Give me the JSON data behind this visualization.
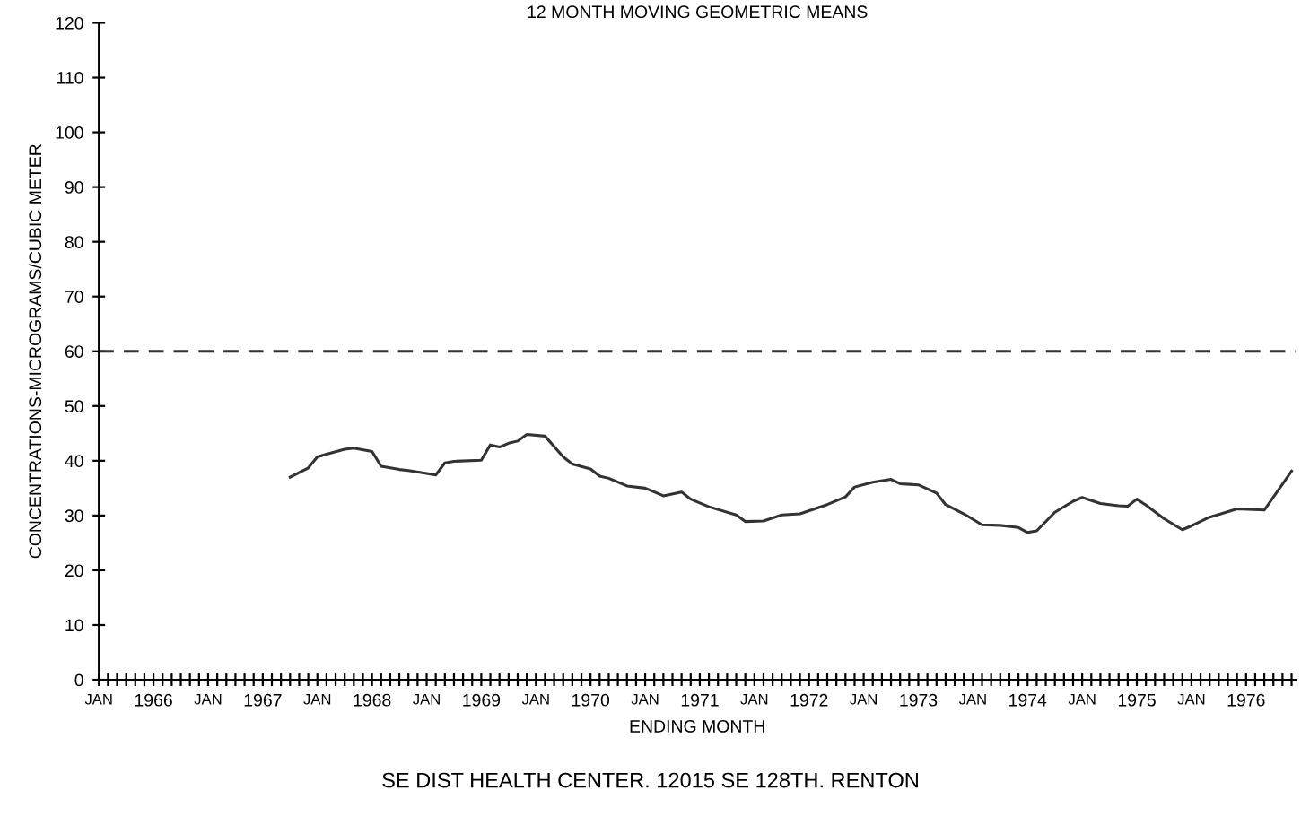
{
  "chart_data": {
    "type": "line",
    "title": "12 MONTH MOVING GEOMETRIC MEANS",
    "xlabel": "ENDING MONTH",
    "ylabel": "CONCENTRATIONS-MICROGRAMS/CUBIC METER",
    "annotations": [
      "SE DIST HEALTH CENTER. 12015 SE 128TH. RENTON"
    ],
    "x": [
      "1967-10",
      "1967-12",
      "1968-01",
      "1968-02",
      "1968-04",
      "1968-05",
      "1968-07",
      "1968-08",
      "1968-10",
      "1968-11",
      "1969-01",
      "1969-02",
      "1969-03",
      "1969-04",
      "1969-07",
      "1969-08",
      "1969-09",
      "1969-10",
      "1969-11",
      "1969-12",
      "1970-02",
      "1970-04",
      "1970-05",
      "1970-07",
      "1970-08",
      "1970-09",
      "1970-11",
      "1971-01",
      "1971-03",
      "1971-05",
      "1971-06",
      "1971-08",
      "1971-11",
      "1971-12",
      "1972-02",
      "1972-04",
      "1972-06",
      "1972-09",
      "1972-11",
      "1972-12",
      "1973-02",
      "1973-04",
      "1973-05",
      "1973-07",
      "1973-09",
      "1973-10",
      "1973-12",
      "1974-02",
      "1974-04",
      "1974-06",
      "1974-07",
      "1974-08",
      "1974-10",
      "1974-12",
      "1975-01",
      "1975-03",
      "1975-05",
      "1975-06",
      "1975-07",
      "1975-08",
      "1975-10",
      "1975-12",
      "1976-01",
      "1976-03",
      "1976-04",
      "1976-06",
      "1976-09",
      "1976-12"
    ],
    "series": [
      {
        "color": "#333333",
        "values": [
          37.0,
          38.7,
          40.7,
          41.2,
          42.1,
          42.3,
          41.7,
          39.0,
          38.4,
          38.2,
          37.7,
          37.4,
          39.6,
          39.9,
          40.1,
          42.9,
          42.5,
          43.2,
          43.6,
          44.8,
          44.5,
          40.7,
          39.4,
          38.5,
          37.2,
          36.8,
          35.4,
          35.0,
          33.6,
          34.3,
          33.0,
          31.6,
          30.1,
          28.9,
          29.0,
          30.1,
          30.3,
          32.0,
          33.4,
          35.2,
          36.1,
          36.6,
          35.8,
          35.6,
          34.1,
          32.0,
          30.3,
          28.3,
          28.2,
          27.8,
          26.9,
          27.2,
          30.6,
          32.6,
          33.3,
          32.2,
          31.8,
          31.7,
          33.0,
          31.9,
          29.4,
          27.4,
          28.1,
          29.7,
          30.2,
          31.2,
          31.0,
          38.1
        ]
      }
    ],
    "ylim": [
      0,
      120
    ],
    "yticks": [
      0,
      10,
      20,
      30,
      40,
      50,
      60,
      70,
      80,
      90,
      100,
      110,
      120
    ],
    "xlim": [
      "1966-01",
      "1976-12-15"
    ],
    "xticks": [
      {
        "value": "1966-01",
        "label": "JAN"
      },
      {
        "value": "1966-02",
        "label": null
      },
      {
        "value": "1966-03",
        "label": null
      },
      {
        "value": "1966-04",
        "label": null
      },
      {
        "value": "1966-05",
        "label": null
      },
      {
        "value": "1966-06",
        "label": null
      },
      {
        "value": "1966-07",
        "label": "1966"
      },
      {
        "value": "1966-08",
        "label": null
      },
      {
        "value": "1966-09",
        "label": null
      },
      {
        "value": "1966-10",
        "label": null
      },
      {
        "value": "1966-11",
        "label": null
      },
      {
        "value": "1966-12",
        "label": null
      },
      {
        "value": "1967-01",
        "label": "JAN"
      },
      {
        "value": "1967-02",
        "label": null
      },
      {
        "value": "1967-03",
        "label": null
      },
      {
        "value": "1967-04",
        "label": null
      },
      {
        "value": "1967-05",
        "label": null
      },
      {
        "value": "1967-06",
        "label": null
      },
      {
        "value": "1967-07",
        "label": "1967"
      },
      {
        "value": "1967-08",
        "label": null
      },
      {
        "value": "1967-09",
        "label": null
      },
      {
        "value": "1967-10",
        "label": null
      },
      {
        "value": "1967-11",
        "label": null
      },
      {
        "value": "1967-12",
        "label": null
      },
      {
        "value": "1968-01",
        "label": "JAN"
      },
      {
        "value": "1968-02",
        "label": null
      },
      {
        "value": "1968-03",
        "label": null
      },
      {
        "value": "1968-04",
        "label": null
      },
      {
        "value": "1968-05",
        "label": null
      },
      {
        "value": "1968-06",
        "label": null
      },
      {
        "value": "1968-07",
        "label": "1968"
      },
      {
        "value": "1968-08",
        "label": null
      },
      {
        "value": "1968-09",
        "label": null
      },
      {
        "value": "1968-10",
        "label": null
      },
      {
        "value": "1968-11",
        "label": null
      },
      {
        "value": "1968-12",
        "label": null
      },
      {
        "value": "1969-01",
        "label": "JAN"
      },
      {
        "value": "1969-02",
        "label": null
      },
      {
        "value": "1969-03",
        "label": null
      },
      {
        "value": "1969-04",
        "label": null
      },
      {
        "value": "1969-05",
        "label": null
      },
      {
        "value": "1969-06",
        "label": null
      },
      {
        "value": "1969-07",
        "label": "1969"
      },
      {
        "value": "1969-08",
        "label": null
      },
      {
        "value": "1969-09",
        "label": null
      },
      {
        "value": "1969-10",
        "label": null
      },
      {
        "value": "1969-11",
        "label": null
      },
      {
        "value": "1969-12",
        "label": null
      },
      {
        "value": "1970-01",
        "label": "JAN"
      },
      {
        "value": "1970-02",
        "label": null
      },
      {
        "value": "1970-03",
        "label": null
      },
      {
        "value": "1970-04",
        "label": null
      },
      {
        "value": "1970-05",
        "label": null
      },
      {
        "value": "1970-06",
        "label": null
      },
      {
        "value": "1970-07",
        "label": "1970"
      },
      {
        "value": "1970-08",
        "label": null
      },
      {
        "value": "1970-09",
        "label": null
      },
      {
        "value": "1970-10",
        "label": null
      },
      {
        "value": "1970-11",
        "label": null
      },
      {
        "value": "1970-12",
        "label": null
      },
      {
        "value": "1971-01",
        "label": "JAN"
      },
      {
        "value": "1971-02",
        "label": null
      },
      {
        "value": "1971-03",
        "label": null
      },
      {
        "value": "1971-04",
        "label": null
      },
      {
        "value": "1971-05",
        "label": null
      },
      {
        "value": "1971-06",
        "label": null
      },
      {
        "value": "1971-07",
        "label": "1971"
      },
      {
        "value": "1971-08",
        "label": null
      },
      {
        "value": "1971-09",
        "label": null
      },
      {
        "value": "1971-10",
        "label": null
      },
      {
        "value": "1971-11",
        "label": null
      },
      {
        "value": "1971-12",
        "label": null
      },
      {
        "value": "1972-01",
        "label": "JAN"
      },
      {
        "value": "1972-02",
        "label": null
      },
      {
        "value": "1972-03",
        "label": null
      },
      {
        "value": "1972-04",
        "label": null
      },
      {
        "value": "1972-05",
        "label": null
      },
      {
        "value": "1972-06",
        "label": null
      },
      {
        "value": "1972-07",
        "label": "1972"
      },
      {
        "value": "1972-08",
        "label": null
      },
      {
        "value": "1972-09",
        "label": null
      },
      {
        "value": "1972-10",
        "label": null
      },
      {
        "value": "1972-11",
        "label": null
      },
      {
        "value": "1972-12",
        "label": null
      },
      {
        "value": "1973-01",
        "label": "JAN"
      },
      {
        "value": "1973-02",
        "label": null
      },
      {
        "value": "1973-03",
        "label": null
      },
      {
        "value": "1973-04",
        "label": null
      },
      {
        "value": "1973-05",
        "label": null
      },
      {
        "value": "1973-06",
        "label": null
      },
      {
        "value": "1973-07",
        "label": "1973"
      },
      {
        "value": "1973-08",
        "label": null
      },
      {
        "value": "1973-09",
        "label": null
      },
      {
        "value": "1973-10",
        "label": null
      },
      {
        "value": "1973-11",
        "label": null
      },
      {
        "value": "1973-12",
        "label": null
      },
      {
        "value": "1974-01",
        "label": "JAN"
      },
      {
        "value": "1974-02",
        "label": null
      },
      {
        "value": "1974-03",
        "label": null
      },
      {
        "value": "1974-04",
        "label": null
      },
      {
        "value": "1974-05",
        "label": null
      },
      {
        "value": "1974-06",
        "label": null
      },
      {
        "value": "1974-07",
        "label": "1974"
      },
      {
        "value": "1974-08",
        "label": null
      },
      {
        "value": "1974-09",
        "label": null
      },
      {
        "value": "1974-10",
        "label": null
      },
      {
        "value": "1974-11",
        "label": null
      },
      {
        "value": "1974-12",
        "label": null
      },
      {
        "value": "1975-01",
        "label": "JAN"
      },
      {
        "value": "1975-02",
        "label": null
      },
      {
        "value": "1975-03",
        "label": null
      },
      {
        "value": "1975-04",
        "label": null
      },
      {
        "value": "1975-05",
        "label": null
      },
      {
        "value": "1975-06",
        "label": null
      },
      {
        "value": "1975-07",
        "label": "1975"
      },
      {
        "value": "1975-08",
        "label": null
      },
      {
        "value": "1975-09",
        "label": null
      },
      {
        "value": "1975-10",
        "label": null
      },
      {
        "value": "1975-11",
        "label": null
      },
      {
        "value": "1975-12",
        "label": null
      },
      {
        "value": "1976-01",
        "label": "JAN"
      },
      {
        "value": "1976-02",
        "label": null
      },
      {
        "value": "1976-03",
        "label": null
      },
      {
        "value": "1976-04",
        "label": null
      },
      {
        "value": "1976-05",
        "label": null
      },
      {
        "value": "1976-06",
        "label": null
      },
      {
        "value": "1976-07",
        "label": "1976"
      },
      {
        "value": "1976-08",
        "label": null
      },
      {
        "value": "1976-09",
        "label": null
      },
      {
        "value": "1976-10",
        "label": null
      },
      {
        "value": "1976-11",
        "label": null
      },
      {
        "value": "1976-12",
        "label": null
      }
    ],
    "ref_lines": [
      {
        "axis": "y",
        "value": 60,
        "line_style": "dashed",
        "color": "#333333"
      }
    ],
    "grid": false,
    "legend": false,
    "marker": "none",
    "line_style": "solid"
  }
}
